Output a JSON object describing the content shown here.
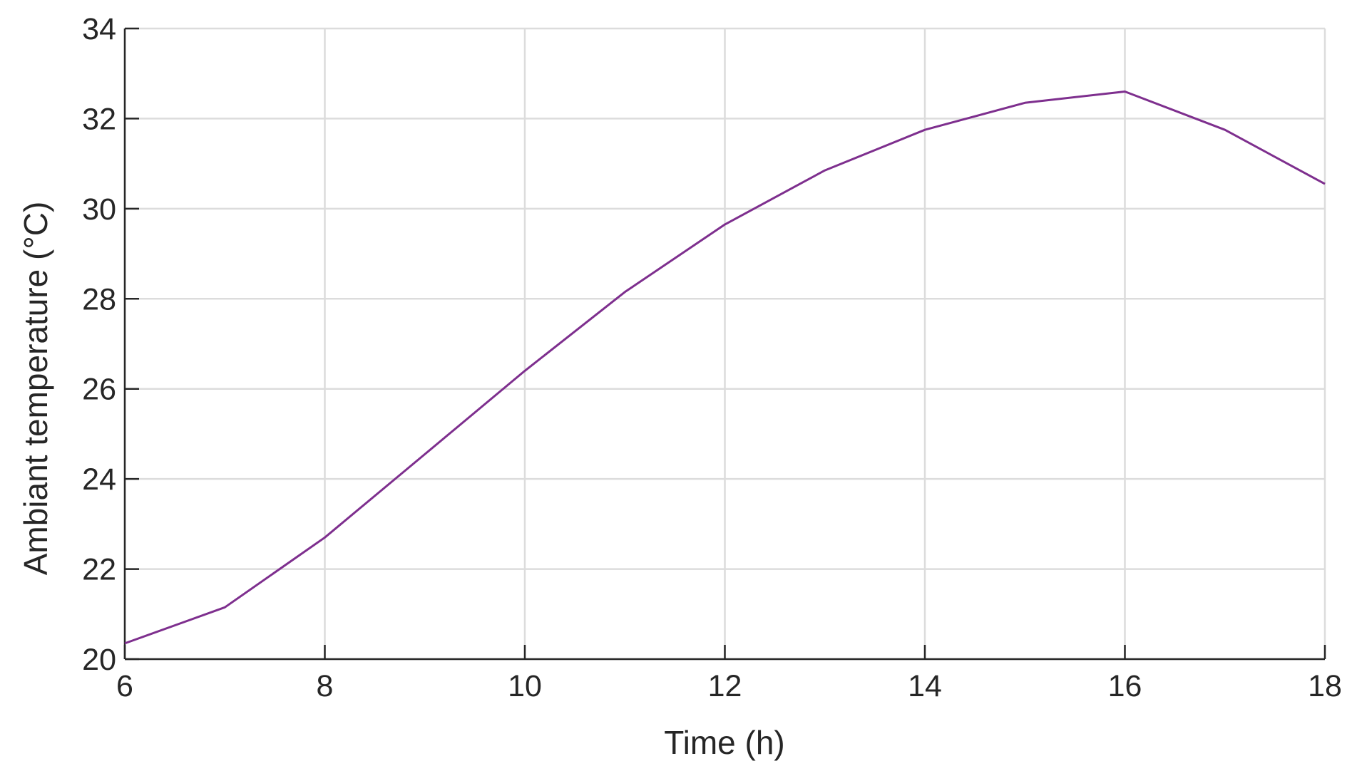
{
  "chart_data": {
    "type": "line",
    "title": "",
    "xlabel": "Time (h)",
    "ylabel": "Ambiant temperature (°C)",
    "xlim": [
      6,
      18
    ],
    "ylim": [
      20,
      34
    ],
    "xticks": [
      6,
      8,
      10,
      12,
      14,
      16,
      18
    ],
    "yticks": [
      20,
      22,
      24,
      26,
      28,
      30,
      32,
      34
    ],
    "grid": true,
    "legend": "none",
    "series": [
      {
        "color": "#7e2f8e",
        "x": [
          6,
          7,
          8,
          9,
          10,
          11,
          12,
          13,
          14,
          15,
          16,
          17,
          18
        ],
        "y": [
          20.35,
          21.15,
          22.7,
          24.55,
          26.4,
          28.15,
          29.65,
          30.85,
          31.75,
          32.35,
          32.6,
          31.75,
          30.55
        ]
      }
    ]
  },
  "colors": {
    "grid": "#dcdcdc",
    "axis": "#262626",
    "series": "#7e2f8e"
  }
}
